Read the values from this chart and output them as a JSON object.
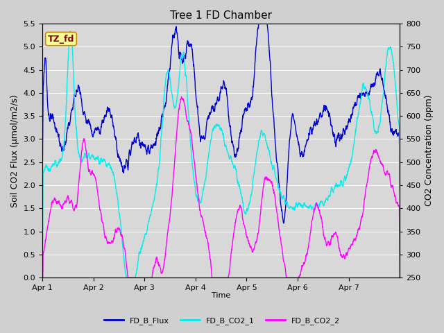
{
  "title": "Tree 1 FD Chamber",
  "xlabel": "Time",
  "ylabel_left": "Soil CO2 Flux (μmol/m2/s)",
  "ylabel_right": "CO2 Concentration (ppm)",
  "ylim_left": [
    0.0,
    5.5
  ],
  "ylim_right": [
    250,
    800
  ],
  "yticks_left": [
    0.0,
    0.5,
    1.0,
    1.5,
    2.0,
    2.5,
    3.0,
    3.5,
    4.0,
    4.5,
    5.0,
    5.5
  ],
  "yticks_right": [
    250,
    300,
    350,
    400,
    450,
    500,
    550,
    600,
    650,
    700,
    750,
    800
  ],
  "xtick_labels": [
    "Apr 1",
    "Apr 2",
    "Apr 3",
    "Apr 4",
    "Apr 5",
    "Apr 6",
    "Apr 7"
  ],
  "n_days": 7,
  "color_flux": "#0000CC",
  "color_co2_1": "#00EEEE",
  "color_co2_2": "#FF00FF",
  "fig_bg_color": "#D0D0D0",
  "plot_bg_color": "#D8D8D8",
  "annotation_text": "TZ_fd",
  "annotation_bg": "#FFFF99",
  "annotation_border": "#CC8800",
  "annotation_color": "#880000",
  "legend_labels": [
    "FD_B_Flux",
    "FD_B_CO2_1",
    "FD_B_CO2_2"
  ],
  "grid_color": "#FFFFFF",
  "n_points": 2000
}
